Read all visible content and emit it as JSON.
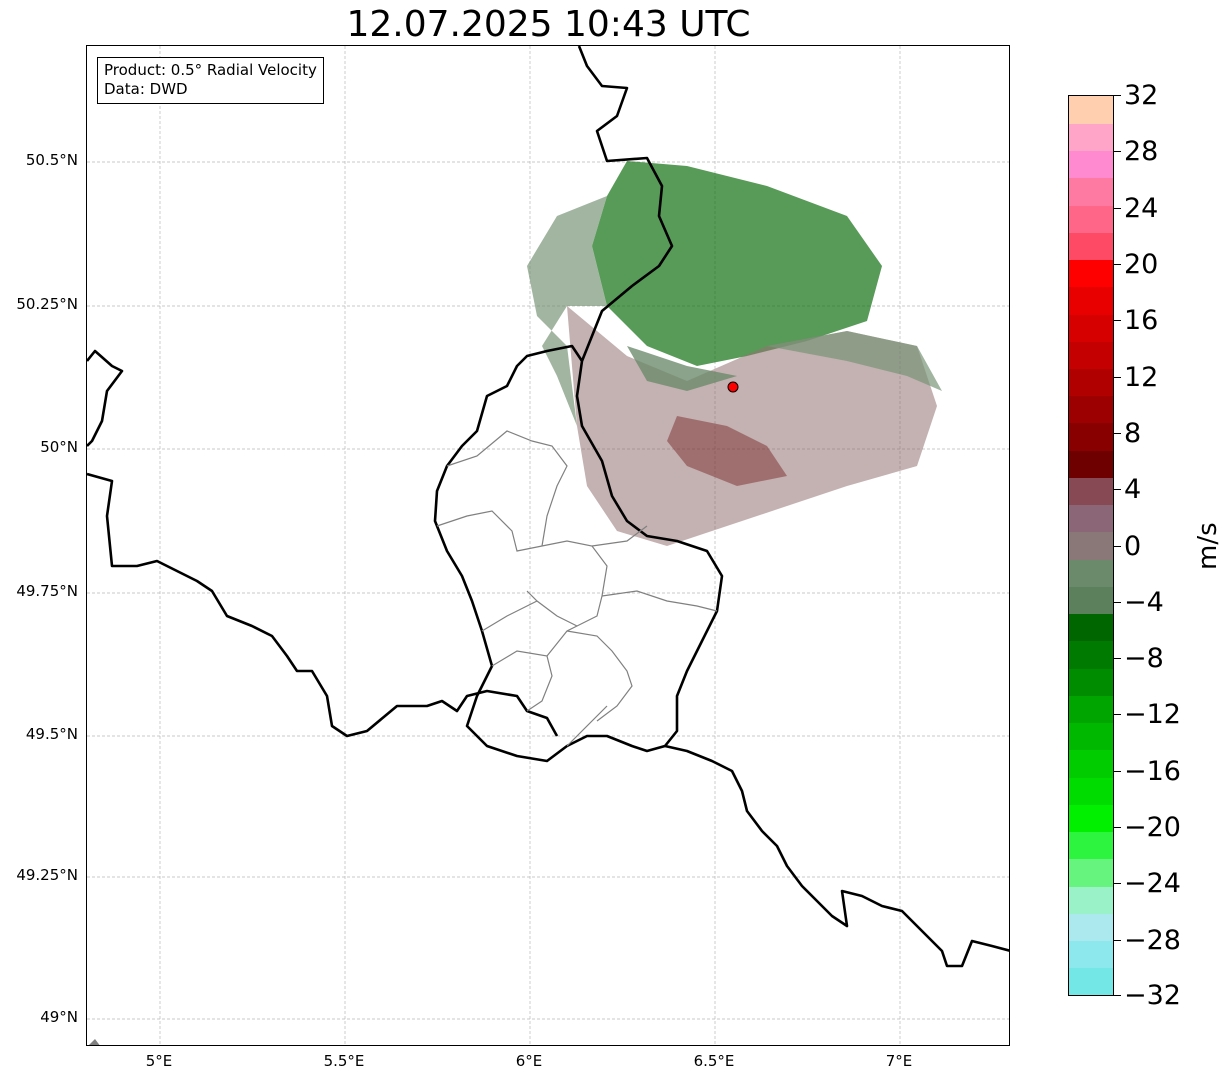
{
  "title": "12.07.2025 10:43 UTC",
  "info": {
    "product": "Product: 0.5° Radial Velocity",
    "data_source": "Data: DWD"
  },
  "map": {
    "lon_range": [
      4.8,
      7.3
    ],
    "lat_range": [
      48.95,
      50.7
    ],
    "x_ticks": [
      {
        "value": 5.0,
        "label": "5°E"
      },
      {
        "value": 5.5,
        "label": "5.5°E"
      },
      {
        "value": 6.0,
        "label": "6°E"
      },
      {
        "value": 6.5,
        "label": "6.5°E"
      },
      {
        "value": 7.0,
        "label": "7°E"
      }
    ],
    "y_ticks": [
      {
        "value": 50.5,
        "label": "50.5°N"
      },
      {
        "value": 50.25,
        "label": "50.25°N"
      },
      {
        "value": 50.0,
        "label": "50°N"
      },
      {
        "value": 49.75,
        "label": "49.75°N"
      },
      {
        "value": 49.5,
        "label": "49.5°N"
      },
      {
        "value": 49.25,
        "label": "49.25°N"
      },
      {
        "value": 49.0,
        "label": "49°N"
      }
    ],
    "grid": true,
    "radar_site": {
      "lon": 6.55,
      "lat": 50.11,
      "color": "#ff0000"
    }
  },
  "colorbar": {
    "unit": "m/s",
    "range": [
      -32,
      32
    ],
    "step": 2,
    "tick_labels": [
      "32",
      "28",
      "24",
      "20",
      "16",
      "12",
      "8",
      "4",
      "0",
      "−4",
      "−8",
      "−12",
      "−16",
      "−20",
      "−24",
      "−28",
      "−32"
    ],
    "colors_bottom_to_top": [
      "#73e6e6",
      "#8ce8ec",
      "#ace9ee",
      "#9af3c8",
      "#66f47e",
      "#2df53f",
      "#00f000",
      "#00dc00",
      "#00cc00",
      "#00b800",
      "#00a500",
      "#008c00",
      "#007a00",
      "#006600",
      "#5c7f5c",
      "#6b8a6b",
      "#8a7878",
      "#8a6676",
      "#874a55",
      "#6e0000",
      "#880000",
      "#9c0000",
      "#b00000",
      "#c40000",
      "#d60000",
      "#e80000",
      "#ff0000",
      "#ff4a66",
      "#ff6688",
      "#ff7aa3",
      "#ff8ad0",
      "#ffa6c8",
      "#ffcfb0"
    ]
  }
}
